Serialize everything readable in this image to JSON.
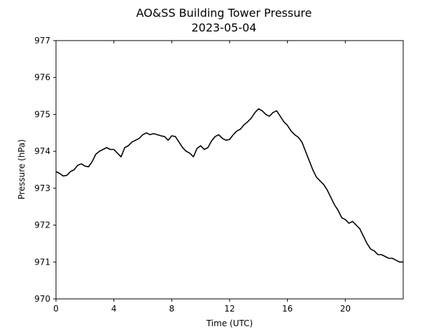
{
  "chart_data": {
    "type": "line",
    "title": "AO&SS Building Tower Pressure",
    "subtitle": "2023-05-04",
    "xlabel": "Time (UTC)",
    "ylabel": "Pressure (hPa)",
    "xlim": [
      0,
      24
    ],
    "ylim": [
      970,
      977
    ],
    "xticks": [
      0,
      4,
      8,
      12,
      16,
      20
    ],
    "yticks": [
      970,
      971,
      972,
      973,
      974,
      975,
      976,
      977
    ],
    "grid": false,
    "line_color": "#000000",
    "series": [
      {
        "x": [
          0,
          0.25,
          0.5,
          0.75,
          1.0,
          1.25,
          1.5,
          1.75,
          2.0,
          2.25,
          2.5,
          2.75,
          3.0,
          3.25,
          3.5,
          3.75,
          4.0,
          4.25,
          4.5,
          4.75,
          5.0,
          5.25,
          5.5,
          5.75,
          6.0,
          6.25,
          6.5,
          6.75,
          7.0,
          7.25,
          7.5,
          7.75,
          8.0,
          8.25,
          8.5,
          8.75,
          9.0,
          9.25,
          9.5,
          9.75,
          10.0,
          10.25,
          10.5,
          10.75,
          11.0,
          11.25,
          11.5,
          11.75,
          12.0,
          12.25,
          12.5,
          12.75,
          13.0,
          13.25,
          13.5,
          13.75,
          14.0,
          14.25,
          14.5,
          14.75,
          15.0,
          15.25,
          15.5,
          15.75,
          16.0,
          16.25,
          16.5,
          16.75,
          17.0,
          17.25,
          17.5,
          17.75,
          18.0,
          18.25,
          18.5,
          18.75,
          19.0,
          19.25,
          19.5,
          19.75,
          20.0,
          20.25,
          20.5,
          20.75,
          21.0,
          21.25,
          21.5,
          21.75,
          22.0,
          22.25,
          22.5,
          22.75,
          23.0,
          23.25,
          23.5,
          23.75,
          24.0
        ],
        "y": [
          973.45,
          973.4,
          973.33,
          973.35,
          973.45,
          973.5,
          973.62,
          973.66,
          973.6,
          973.58,
          973.72,
          973.92,
          974.0,
          974.05,
          974.1,
          974.05,
          974.05,
          973.95,
          973.85,
          974.1,
          974.15,
          974.25,
          974.3,
          974.35,
          974.45,
          974.5,
          974.45,
          974.48,
          974.45,
          974.42,
          974.4,
          974.3,
          974.42,
          974.4,
          974.25,
          974.1,
          974.0,
          973.95,
          973.85,
          974.08,
          974.15,
          974.05,
          974.1,
          974.28,
          974.4,
          974.45,
          974.35,
          974.3,
          974.32,
          974.45,
          974.55,
          974.6,
          974.72,
          974.8,
          974.9,
          975.05,
          975.15,
          975.1,
          975.0,
          974.95,
          975.05,
          975.1,
          974.95,
          974.8,
          974.7,
          974.55,
          974.45,
          974.38,
          974.25,
          974.0,
          973.75,
          973.5,
          973.3,
          973.2,
          973.1,
          972.95,
          972.75,
          972.55,
          972.4,
          972.2,
          972.15,
          972.05,
          972.1,
          972.0,
          971.9,
          971.7,
          971.5,
          971.35,
          971.3,
          971.2,
          971.2,
          971.15,
          971.1,
          971.1,
          971.05,
          971.0,
          971.0
        ]
      }
    ]
  }
}
